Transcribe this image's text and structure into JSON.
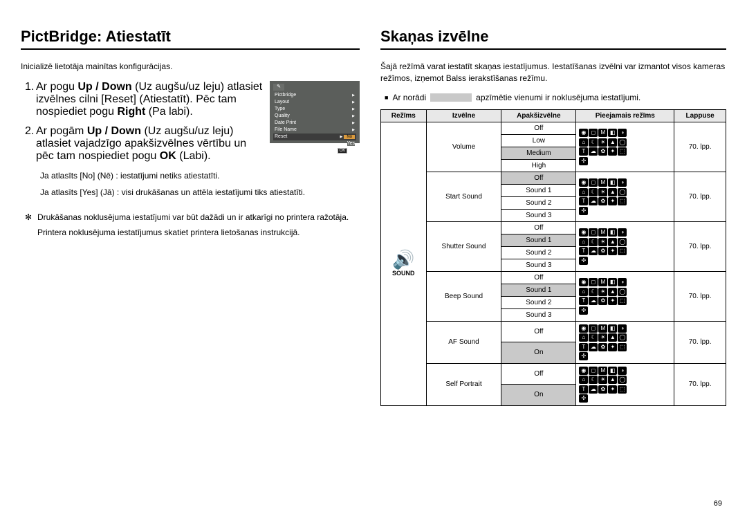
{
  "pageNumber": "69",
  "left": {
    "heading": "PictBridge: Atiestatīt",
    "intro": "Inicializē lietotāja mainītas konfigurācijas.",
    "step1_num": "1.",
    "step1_l1": "Ar pogu ",
    "step1_b1": "Up / Down",
    "step1_l2": " (Uz augšu/uz leju) atlasiet izvēlnes cilni [Reset] (Atiestatīt). Pēc tam nospiediet pogu ",
    "step1_b2": "Right",
    "step1_l3": " (Pa labi).",
    "step2_num": "2.",
    "step2_l1": "Ar pogām ",
    "step2_b1": "Up / Down",
    "step2_l2": " (Uz augšu/uz leju) atlasiet vajadzīgo apakšizvēlnes vērtību un pēc tam nospiediet pogu ",
    "step2_b2": "OK",
    "step2_l3": " (Labi).",
    "no_line": "Ja atlasīts [No] (Nē)  : iestatījumi netiks atiestatīti.",
    "yes_line": "Ja atlasīts [Yes] (Jā) : visi drukāšanas un attēla iestatījumi tiks atiestatīti.",
    "note_sym": "✻",
    "note1": "Drukāšanas noklusējuma iestatījumi var būt dažādi un ir atkarīgi no printera ražotāja.",
    "note2": "Printera noklusējuma iestatījumus skatiet printera lietošanas instrukcijā.",
    "menu": {
      "items": [
        "Pictbridge",
        "Layout",
        "Type",
        "Quality",
        "Date Print",
        "File Name"
      ],
      "reset": "Reset",
      "reset_opts": [
        "No",
        "Yes"
      ],
      "back": "Back",
      "ok": "OK",
      "set": "Set"
    }
  },
  "right": {
    "heading": "Skaņas izvēlne",
    "intro": "Šajā režīmā varat iestatīt skaņas iestatījumus. Iestatīšanas izvēlni var izmantot visos kameras režīmos, izņemot Balss ierakstīšanas režīmu.",
    "bullet": "Ar norādi",
    "bullet2": "apzīmētie vienumi ir noklusējuma iestatījumi.",
    "th": {
      "mode": "Režīms",
      "menu": "Izvēlne",
      "submenu": "Apakšizvēlne",
      "avail": "Pieejamais režīms",
      "page": "Lappuse"
    },
    "modeLabel": "SOUND",
    "pageAll": "70. lpp.",
    "rows": [
      {
        "menu": "Volume",
        "sub": [
          "Off",
          "Low",
          "Medium",
          "High"
        ],
        "hi": 2,
        "iconsRows": 3,
        "iconsLast": 1,
        "pageSpan": 4
      },
      {
        "menu": "Start Sound",
        "sub": [
          "Off",
          "Sound 1",
          "Sound 2",
          "Sound 3"
        ],
        "hi": 0,
        "iconsRows": 3,
        "iconsLast": 1,
        "pageSpan": 4
      },
      {
        "menu": "Shutter Sound",
        "sub": [
          "Off",
          "Sound 1",
          "Sound 2",
          "Sound 3"
        ],
        "hi": 1,
        "iconsRows": 3,
        "iconsLast": 1,
        "pageSpan": 4
      },
      {
        "menu": "Beep Sound",
        "sub": [
          "Off",
          "Sound 1",
          "Sound 2",
          "Sound 3"
        ],
        "hi": 1,
        "iconsRows": 3,
        "iconsLast": 1,
        "pageSpan": 4
      },
      {
        "menu": "AF Sound",
        "sub": [
          "Off",
          "On"
        ],
        "hi": 1,
        "iconsRows": 3,
        "iconsLast": 1,
        "pageSpan": 2
      },
      {
        "menu": "Self Portrait",
        "sub": [
          "Off",
          "On"
        ],
        "hi": 1,
        "iconsRows": 3,
        "iconsLast": 1,
        "pageSpan": 2
      }
    ]
  }
}
